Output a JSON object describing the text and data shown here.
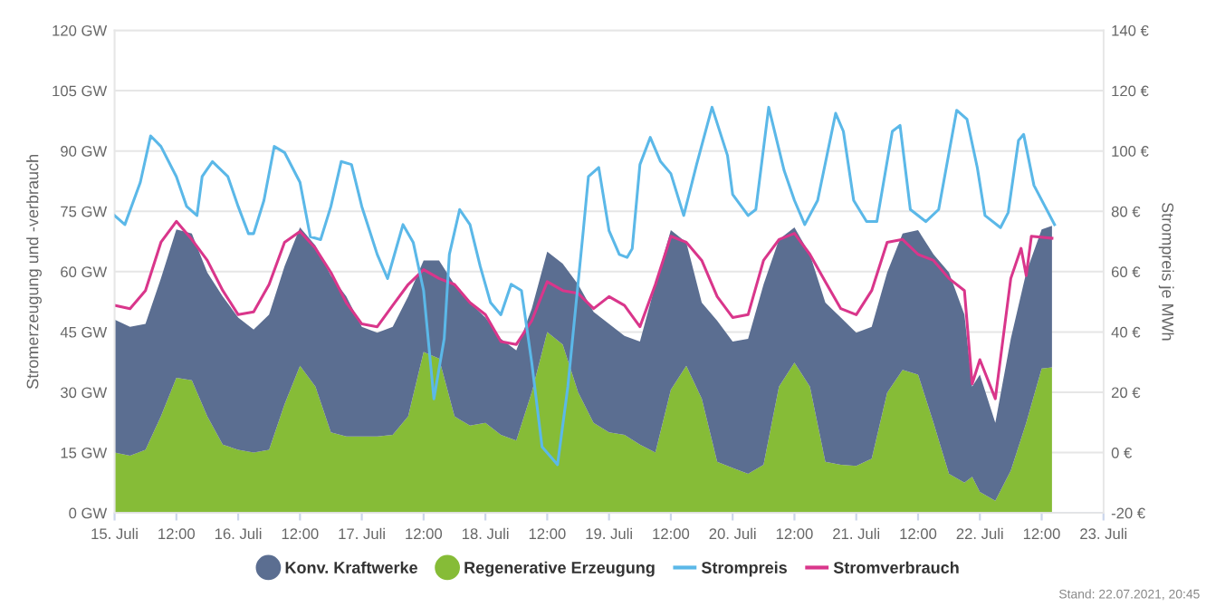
{
  "chart_data": {
    "type": "area",
    "stacked": true,
    "xlim": [
      "2021-07-15T00:00",
      "2021-07-23T00:00"
    ],
    "xticks": [
      {
        "value": "2021-07-15T00:00",
        "label": "15. Juli"
      },
      {
        "value": "2021-07-15T12:00",
        "label": "12:00"
      },
      {
        "value": "2021-07-16T00:00",
        "label": "16. Juli"
      },
      {
        "value": "2021-07-16T12:00",
        "label": "12:00"
      },
      {
        "value": "2021-07-17T00:00",
        "label": "17. Juli"
      },
      {
        "value": "2021-07-17T12:00",
        "label": "12:00"
      },
      {
        "value": "2021-07-18T00:00",
        "label": "18. Juli"
      },
      {
        "value": "2021-07-18T12:00",
        "label": "12:00"
      },
      {
        "value": "2021-07-19T00:00",
        "label": "19. Juli"
      },
      {
        "value": "2021-07-19T12:00",
        "label": "12:00"
      },
      {
        "value": "2021-07-20T00:00",
        "label": "20. Juli"
      },
      {
        "value": "2021-07-20T12:00",
        "label": "12:00"
      },
      {
        "value": "2021-07-21T00:00",
        "label": "21. Juli"
      },
      {
        "value": "2021-07-21T12:00",
        "label": "12:00"
      },
      {
        "value": "2021-07-22T00:00",
        "label": "22. Juli"
      },
      {
        "value": "2021-07-22T12:00",
        "label": "12:00"
      },
      {
        "value": "2021-07-23T00:00",
        "label": "23. Juli"
      }
    ],
    "ylim": [
      0,
      120
    ],
    "yticks": [
      {
        "value": 0,
        "label": "0 GW"
      },
      {
        "value": 15,
        "label": "15 GW"
      },
      {
        "value": 30,
        "label": "30 GW"
      },
      {
        "value": 45,
        "label": "45 GW"
      },
      {
        "value": 60,
        "label": "60 GW"
      },
      {
        "value": 75,
        "label": "75 GW"
      },
      {
        "value": 90,
        "label": "90 GW"
      },
      {
        "value": 105,
        "label": "105 GW"
      },
      {
        "value": 120,
        "label": "120 GW"
      }
    ],
    "y2lim": [
      -20,
      140
    ],
    "y2ticks": [
      {
        "value": -20,
        "label": "-20 €"
      },
      {
        "value": 0,
        "label": "0 €"
      },
      {
        "value": 20,
        "label": "20 €"
      },
      {
        "value": 40,
        "label": "40 €"
      },
      {
        "value": 60,
        "label": "60 €"
      },
      {
        "value": 80,
        "label": "80 €"
      },
      {
        "value": 100,
        "label": "100 €"
      },
      {
        "value": 120,
        "label": "120 €"
      },
      {
        "value": 140,
        "label": "140 €"
      }
    ],
    "ylabel": "Stromerzeugung und -verbrauch",
    "y2label": "Strompreis je MWh",
    "grid": "y",
    "legend": "bottom",
    "annotations": [
      "Stand: 22.07.2021, 20:45"
    ],
    "x": [
      "2021-07-15T00:00",
      "2021-07-15T03:00",
      "2021-07-15T06:00",
      "2021-07-15T09:00",
      "2021-07-15T12:00",
      "2021-07-15T15:00",
      "2021-07-15T18:00",
      "2021-07-15T21:00",
      "2021-07-16T00:00",
      "2021-07-16T03:00",
      "2021-07-16T06:00",
      "2021-07-16T09:00",
      "2021-07-16T12:00",
      "2021-07-16T15:00",
      "2021-07-16T18:00",
      "2021-07-16T21:00",
      "2021-07-17T00:00",
      "2021-07-17T03:00",
      "2021-07-17T06:00",
      "2021-07-17T09:00",
      "2021-07-17T12:00",
      "2021-07-17T15:00",
      "2021-07-17T18:00",
      "2021-07-17T21:00",
      "2021-07-18T00:00",
      "2021-07-18T03:00",
      "2021-07-18T06:00",
      "2021-07-18T09:00",
      "2021-07-18T12:00",
      "2021-07-18T15:00",
      "2021-07-18T18:00",
      "2021-07-18T21:00",
      "2021-07-19T00:00",
      "2021-07-19T03:00",
      "2021-07-19T06:00",
      "2021-07-19T09:00",
      "2021-07-19T12:00",
      "2021-07-19T15:00",
      "2021-07-19T18:00",
      "2021-07-19T21:00",
      "2021-07-20T00:00",
      "2021-07-20T03:00",
      "2021-07-20T06:00",
      "2021-07-20T09:00",
      "2021-07-20T12:00",
      "2021-07-20T15:00",
      "2021-07-20T18:00",
      "2021-07-20T21:00",
      "2021-07-21T00:00",
      "2021-07-21T03:00",
      "2021-07-21T06:00",
      "2021-07-21T09:00",
      "2021-07-21T12:00",
      "2021-07-21T15:00",
      "2021-07-21T18:00",
      "2021-07-21T21:00",
      "2021-07-21T22:30",
      "2021-07-22T00:00",
      "2021-07-22T03:00",
      "2021-07-22T06:00",
      "2021-07-22T09:00",
      "2021-07-22T12:00",
      "2021-07-22T14:00"
    ],
    "series": [
      {
        "name": "Regenerative Erzeugung",
        "color": "#86bc37",
        "values": [
          15,
          14.2,
          15.7,
          24,
          33.6,
          33,
          24,
          17,
          15.7,
          15,
          15.7,
          27,
          36.6,
          31.4,
          20,
          19,
          19,
          19,
          19.4,
          24,
          40,
          38.4,
          24,
          21.7,
          22.4,
          19.4,
          18,
          30,
          45,
          41.9,
          30,
          22.4,
          20,
          19.4,
          17,
          15,
          30.6,
          36.6,
          28.4,
          12.7,
          11.2,
          9.7,
          12,
          31.4,
          37.4,
          31.4,
          12.7,
          12,
          11.7,
          13.5,
          29.9,
          35.6,
          34.4,
          22.4,
          9.7,
          7.5,
          9,
          5.2,
          3,
          10.5,
          22.4,
          35.9,
          36.2
        ]
      },
      {
        "name": "Konv. Kraftwerke",
        "color": "#5b6e91",
        "values": [
          33.1,
          32.1,
          31.3,
          34.3,
          36.9,
          36.5,
          35.8,
          36.8,
          32.9,
          30.6,
          33.6,
          34.3,
          34.4,
          35.1,
          39,
          34.8,
          27.3,
          25.8,
          26.9,
          29.8,
          22.8,
          24.4,
          32.8,
          30.6,
          26.2,
          23.9,
          22.4,
          20.8,
          20,
          20.1,
          26.8,
          27.6,
          27,
          24.6,
          25.6,
          41.8,
          39.7,
          30.7,
          23.9,
          35.1,
          31.4,
          33.6,
          44.8,
          36.6,
          33.6,
          32.9,
          39.6,
          36.6,
          33.1,
          32.8,
          29.9,
          33.9,
          35.9,
          41.9,
          50.1,
          41.8,
          22.4,
          29.2,
          19.4,
          32.8,
          37.4,
          34.6,
          35.2
        ]
      },
      {
        "name": "Strompreis",
        "type": "line",
        "axis": "y2",
        "color": "#5bb8e8",
        "x": [
          "2021-07-15T00:00",
          "2021-07-15T02:00",
          "2021-07-15T05:00",
          "2021-07-15T07:00",
          "2021-07-15T09:00",
          "2021-07-15T12:00",
          "2021-07-15T14:00",
          "2021-07-15T16:00",
          "2021-07-15T17:00",
          "2021-07-15T19:00",
          "2021-07-15T22:00",
          "2021-07-16T00:00",
          "2021-07-16T02:00",
          "2021-07-16T03:00",
          "2021-07-16T05:00",
          "2021-07-16T07:00",
          "2021-07-16T09:00",
          "2021-07-16T12:00",
          "2021-07-16T14:00",
          "2021-07-16T16:00",
          "2021-07-16T18:00",
          "2021-07-16T20:00",
          "2021-07-16T22:00",
          "2021-07-17T00:00",
          "2021-07-17T03:00",
          "2021-07-17T05:00",
          "2021-07-17T08:00",
          "2021-07-17T10:00",
          "2021-07-17T12:00",
          "2021-07-17T14:00",
          "2021-07-17T16:00",
          "2021-07-17T17:00",
          "2021-07-17T19:00",
          "2021-07-17T21:00",
          "2021-07-17T23:00",
          "2021-07-18T01:00",
          "2021-07-18T03:00",
          "2021-07-18T05:00",
          "2021-07-18T07:00",
          "2021-07-18T09:00",
          "2021-07-18T11:00",
          "2021-07-18T14:00",
          "2021-07-18T16:00",
          "2021-07-18T19:00",
          "2021-07-18T20:00",
          "2021-07-18T22:00",
          "2021-07-19T00:00",
          "2021-07-19T02:00",
          "2021-07-19T03:30",
          "2021-07-19T04:30",
          "2021-07-19T06:00",
          "2021-07-19T08:00",
          "2021-07-19T10:00",
          "2021-07-19T12:00",
          "2021-07-19T14:30",
          "2021-07-19T17:00",
          "2021-07-19T20:00",
          "2021-07-19T23:00",
          "2021-07-20T00:00",
          "2021-07-20T03:00",
          "2021-07-20T04:30",
          "2021-07-20T07:00",
          "2021-07-20T10:00",
          "2021-07-20T12:00",
          "2021-07-20T14:00",
          "2021-07-20T16:30",
          "2021-07-20T20:00",
          "2021-07-20T21:30",
          "2021-07-20T23:30",
          "2021-07-21T02:00",
          "2021-07-21T04:00",
          "2021-07-21T07:00",
          "2021-07-21T08:30",
          "2021-07-21T10:30",
          "2021-07-21T13:30",
          "2021-07-21T16:00",
          "2021-07-21T19:30",
          "2021-07-21T21:30",
          "2021-07-21T23:30",
          "2021-07-22T01:00",
          "2021-07-22T04:00",
          "2021-07-22T05:30",
          "2021-07-22T07:30",
          "2021-07-22T08:30",
          "2021-07-22T10:30",
          "2021-07-22T14:30"
        ],
        "values": [
          78.6,
          75.6,
          89.6,
          105,
          101.5,
          91.5,
          81.6,
          78.6,
          91.5,
          96.5,
          91.5,
          81.6,
          72.6,
          72.6,
          83.6,
          101.5,
          99.5,
          89.6,
          71.6,
          70.6,
          81.6,
          96.5,
          95.5,
          81.6,
          65.7,
          57.7,
          75.6,
          69.6,
          53.7,
          17.8,
          37.8,
          65.7,
          80.6,
          75.6,
          61.7,
          49.7,
          45.7,
          55.8,
          53.7,
          29.8,
          1.9,
          -4,
          21.8,
          73.6,
          91.5,
          94.5,
          73.6,
          65.7,
          64.7,
          67.6,
          95.5,
          104.5,
          96.5,
          92.5,
          78.6,
          95.5,
          114.5,
          98.5,
          85.6,
          78.6,
          80.6,
          114.5,
          93.5,
          83.6,
          75.6,
          83.6,
          112.5,
          106.5,
          83.6,
          76.6,
          76.6,
          106.5,
          108.5,
          80.6,
          76.6,
          80.6,
          113.5,
          110.5,
          94.5,
          78.6,
          74.6,
          79.6,
          103.5,
          105.5,
          88.6,
          75.6
        ]
      },
      {
        "name": "Stromverbrauch",
        "type": "line",
        "color": "#d9368b",
        "x": [
          "2021-07-15T00:00",
          "2021-07-15T03:00",
          "2021-07-15T06:00",
          "2021-07-15T09:00",
          "2021-07-15T12:00",
          "2021-07-15T15:00",
          "2021-07-15T18:00",
          "2021-07-15T21:00",
          "2021-07-16T00:00",
          "2021-07-16T03:00",
          "2021-07-16T06:00",
          "2021-07-16T09:00",
          "2021-07-16T12:00",
          "2021-07-16T15:00",
          "2021-07-16T18:00",
          "2021-07-16T21:00",
          "2021-07-17T00:00",
          "2021-07-17T03:00",
          "2021-07-17T06:00",
          "2021-07-17T09:00",
          "2021-07-17T12:00",
          "2021-07-17T15:00",
          "2021-07-17T18:00",
          "2021-07-17T21:00",
          "2021-07-18T00:00",
          "2021-07-18T03:00",
          "2021-07-18T06:00",
          "2021-07-18T09:00",
          "2021-07-18T12:00",
          "2021-07-18T15:00",
          "2021-07-18T18:00",
          "2021-07-18T21:00",
          "2021-07-19T00:00",
          "2021-07-19T03:00",
          "2021-07-19T06:00",
          "2021-07-19T09:00",
          "2021-07-19T12:00",
          "2021-07-19T15:00",
          "2021-07-19T18:00",
          "2021-07-19T21:00",
          "2021-07-20T00:00",
          "2021-07-20T03:00",
          "2021-07-20T06:00",
          "2021-07-20T09:00",
          "2021-07-20T12:00",
          "2021-07-20T15:00",
          "2021-07-20T18:00",
          "2021-07-20T21:00",
          "2021-07-21T00:00",
          "2021-07-21T03:00",
          "2021-07-21T06:00",
          "2021-07-21T09:00",
          "2021-07-21T12:00",
          "2021-07-21T15:00",
          "2021-07-21T18:00",
          "2021-07-21T21:00",
          "2021-07-21T22:30",
          "2021-07-22T00:00",
          "2021-07-22T03:00",
          "2021-07-22T06:00",
          "2021-07-22T08:00",
          "2021-07-22T09:00",
          "2021-07-22T10:00",
          "2021-07-22T14:00"
        ],
        "values": [
          51.6,
          50.8,
          55.3,
          67.3,
          72.5,
          68,
          62.8,
          55.3,
          49.3,
          50,
          56.8,
          67.3,
          70,
          65.8,
          59.8,
          52.3,
          47,
          46.3,
          51.6,
          56.8,
          60.5,
          58.3,
          56.8,
          52.3,
          49.3,
          42.6,
          41.9,
          47.8,
          57.5,
          55.3,
          54.6,
          50.8,
          53.8,
          51.6,
          46.3,
          56.8,
          68.8,
          67.3,
          62.8,
          53.8,
          48.6,
          49.3,
          62.8,
          68,
          69.5,
          64.3,
          57.5,
          50.8,
          49.3,
          55.3,
          67.3,
          68,
          64.3,
          62.8,
          58.3,
          55.3,
          32.1,
          38.1,
          28.4,
          58.3,
          65.8,
          59,
          68.8,
          68.3
        ]
      }
    ]
  }
}
